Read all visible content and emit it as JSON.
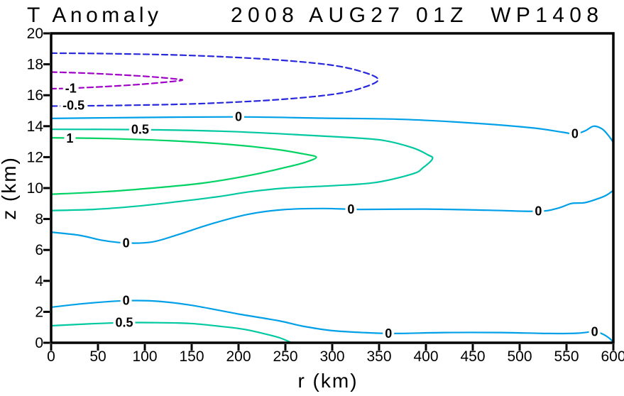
{
  "chart_data": {
    "type": "contour",
    "title_left": "T Anomaly",
    "title_right": "2008 AUG27 01Z  WP1408",
    "xlabel": "r (km)",
    "ylabel": "z (km)",
    "xlim": [
      0,
      600
    ],
    "ylim": [
      0,
      20
    ],
    "x_ticks": [
      0,
      50,
      100,
      150,
      200,
      250,
      300,
      350,
      400,
      450,
      500,
      550,
      600
    ],
    "y_ticks": [
      0,
      2,
      4,
      6,
      8,
      10,
      12,
      14,
      16,
      18,
      20
    ],
    "grid": false,
    "axis_color": "#000000",
    "background_color": "#ffffff",
    "negative_style": "dashed",
    "contours": [
      {
        "level": -1,
        "color": "#A000C8",
        "style": "dashed",
        "points": [
          [
            0,
            17.5
          ],
          [
            40,
            17.42
          ],
          [
            80,
            17.3
          ],
          [
            112,
            17.17
          ],
          [
            133,
            17.05
          ],
          [
            140,
            16.98
          ],
          [
            128,
            16.88
          ],
          [
            95,
            16.7
          ],
          [
            55,
            16.55
          ],
          [
            20,
            16.45
          ],
          [
            0,
            16.42
          ]
        ],
        "labels": [
          {
            "r": 21,
            "z": 16.45,
            "text": "-1"
          }
        ]
      },
      {
        "level": -0.5,
        "color": "#2828DC",
        "style": "dashed",
        "points": [
          [
            0,
            18.72
          ],
          [
            70,
            18.68
          ],
          [
            150,
            18.57
          ],
          [
            230,
            18.33
          ],
          [
            295,
            17.98
          ],
          [
            330,
            17.55
          ],
          [
            349,
            17.02
          ],
          [
            333,
            16.5
          ],
          [
            303,
            16.08
          ],
          [
            243,
            15.72
          ],
          [
            160,
            15.46
          ],
          [
            80,
            15.35
          ],
          [
            0,
            15.3
          ]
        ],
        "labels": [
          {
            "r": 24,
            "z": 15.34,
            "text": "-0.5"
          }
        ]
      },
      {
        "level": 0,
        "color": "#00A0E8",
        "style": "solid",
        "points": [
          [
            0,
            14.5
          ],
          [
            90,
            14.56
          ],
          [
            200,
            14.6
          ],
          [
            290,
            14.52
          ],
          [
            375,
            14.44
          ],
          [
            455,
            14.18
          ],
          [
            515,
            13.88
          ],
          [
            545,
            13.62
          ],
          [
            559,
            13.5
          ],
          [
            570,
            13.7
          ],
          [
            579,
            14.0
          ],
          [
            588,
            13.82
          ],
          [
            595,
            13.38
          ],
          [
            600,
            12.95
          ]
        ],
        "labels": [
          {
            "r": 200,
            "z": 14.6,
            "text": "0"
          },
          {
            "r": 559,
            "z": 13.5,
            "text": "0"
          }
        ]
      },
      {
        "level": 0,
        "color": "#00A0E8",
        "style": "solid",
        "points": [
          [
            0,
            7.15
          ],
          [
            30,
            6.95
          ],
          [
            55,
            6.62
          ],
          [
            80,
            6.45
          ],
          [
            108,
            6.52
          ],
          [
            135,
            6.98
          ],
          [
            172,
            7.7
          ],
          [
            210,
            8.3
          ],
          [
            247,
            8.6
          ],
          [
            290,
            8.68
          ],
          [
            330,
            8.62
          ],
          [
            400,
            8.64
          ],
          [
            465,
            8.57
          ],
          [
            520,
            8.5
          ],
          [
            541,
            8.7
          ],
          [
            555,
            9.0
          ],
          [
            569,
            9.05
          ],
          [
            582,
            9.28
          ],
          [
            592,
            9.52
          ],
          [
            600,
            9.85
          ]
        ],
        "labels": [
          {
            "r": 80,
            "z": 6.45,
            "text": "0"
          },
          {
            "r": 320,
            "z": 8.62,
            "text": "0"
          },
          {
            "r": 520,
            "z": 8.5,
            "text": "0"
          }
        ]
      },
      {
        "level": 0,
        "color": "#00A0E8",
        "style": "solid",
        "points": [
          [
            0,
            2.3
          ],
          [
            40,
            2.56
          ],
          [
            80,
            2.72
          ],
          [
            115,
            2.68
          ],
          [
            150,
            2.42
          ],
          [
            200,
            1.86
          ],
          [
            243,
            1.42
          ],
          [
            268,
            1.08
          ],
          [
            298,
            0.8
          ],
          [
            330,
            0.67
          ],
          [
            365,
            0.6
          ],
          [
            420,
            0.66
          ],
          [
            480,
            0.66
          ],
          [
            532,
            0.6
          ],
          [
            562,
            0.62
          ],
          [
            580,
            0.72
          ],
          [
            589,
            0.55
          ],
          [
            596,
            0.28
          ],
          [
            600,
            0.02
          ]
        ],
        "labels": [
          {
            "r": 80,
            "z": 2.72,
            "text": "0"
          },
          {
            "r": 360,
            "z": 0.6,
            "text": "0"
          },
          {
            "r": 580,
            "z": 0.72,
            "text": "0"
          }
        ]
      },
      {
        "level": 0.5,
        "color": "#00C8A0",
        "style": "solid",
        "points": [
          [
            0,
            13.8
          ],
          [
            90,
            13.78
          ],
          [
            180,
            13.68
          ],
          [
            260,
            13.46
          ],
          [
            320,
            13.26
          ],
          [
            355,
            13.08
          ],
          [
            386,
            12.6
          ],
          [
            402,
            12.15
          ],
          [
            407,
            11.9
          ],
          [
            397,
            11.32
          ],
          [
            386,
            10.92
          ],
          [
            346,
            10.36
          ],
          [
            300,
            10.15
          ],
          [
            250,
            10.0
          ],
          [
            212,
            9.76
          ],
          [
            180,
            9.46
          ],
          [
            135,
            9.12
          ],
          [
            90,
            8.82
          ],
          [
            45,
            8.62
          ],
          [
            0,
            8.55
          ]
        ],
        "labels": [
          {
            "r": 95,
            "z": 13.78,
            "text": "0.5"
          }
        ]
      },
      {
        "level": 0.5,
        "color": "#00C8A0",
        "style": "solid",
        "points": [
          [
            0,
            1.1
          ],
          [
            40,
            1.22
          ],
          [
            78,
            1.3
          ],
          [
            112,
            1.3
          ],
          [
            148,
            1.25
          ],
          [
            178,
            1.08
          ],
          [
            205,
            0.88
          ],
          [
            228,
            0.58
          ],
          [
            244,
            0.32
          ],
          [
            256,
            0.02
          ]
        ],
        "labels": [
          {
            "r": 78,
            "z": 1.3,
            "text": "0.5"
          }
        ]
      },
      {
        "level": 1,
        "color": "#00D264",
        "style": "solid",
        "points": [
          [
            0,
            13.25
          ],
          [
            60,
            13.2
          ],
          [
            130,
            13.05
          ],
          [
            190,
            12.82
          ],
          [
            238,
            12.52
          ],
          [
            268,
            12.22
          ],
          [
            283,
            12.0
          ],
          [
            271,
            11.66
          ],
          [
            249,
            11.32
          ],
          [
            212,
            10.82
          ],
          [
            162,
            10.32
          ],
          [
            112,
            10.02
          ],
          [
            56,
            9.76
          ],
          [
            0,
            9.6
          ]
        ],
        "labels": [
          {
            "r": 20,
            "z": 13.22,
            "text": "1"
          }
        ]
      }
    ]
  }
}
